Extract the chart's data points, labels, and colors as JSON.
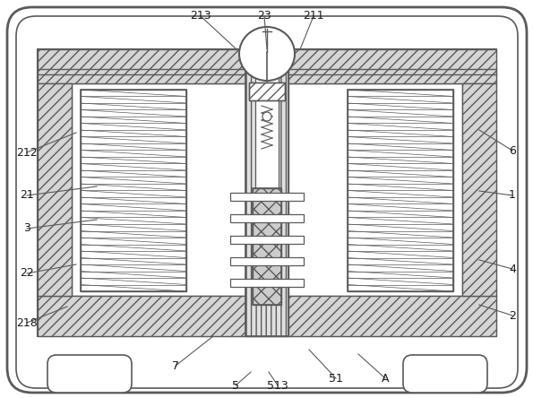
{
  "bg_color": "#ffffff",
  "lc": "#5a5a5a",
  "figsize": [
    5.95,
    4.44
  ],
  "dpi": 100,
  "labels": {
    "7": [
      196,
      408,
      238,
      375
    ],
    "5": [
      263,
      430,
      280,
      415
    ],
    "513": [
      310,
      430,
      300,
      415
    ],
    "51": [
      375,
      422,
      345,
      390
    ],
    "A": [
      430,
      422,
      400,
      395
    ],
    "218": [
      30,
      360,
      75,
      342
    ],
    "22": [
      30,
      305,
      85,
      295
    ],
    "2": [
      572,
      352,
      535,
      340
    ],
    "4": [
      572,
      300,
      535,
      290
    ],
    "3": [
      30,
      255,
      108,
      245
    ],
    "21": [
      30,
      218,
      108,
      208
    ],
    "212": [
      30,
      170,
      85,
      148
    ],
    "1": [
      572,
      218,
      535,
      213
    ],
    "6": [
      572,
      168,
      535,
      145
    ],
    "213": [
      224,
      18,
      264,
      55
    ],
    "23": [
      295,
      18,
      298,
      55
    ],
    "211": [
      350,
      18,
      335,
      55
    ]
  }
}
